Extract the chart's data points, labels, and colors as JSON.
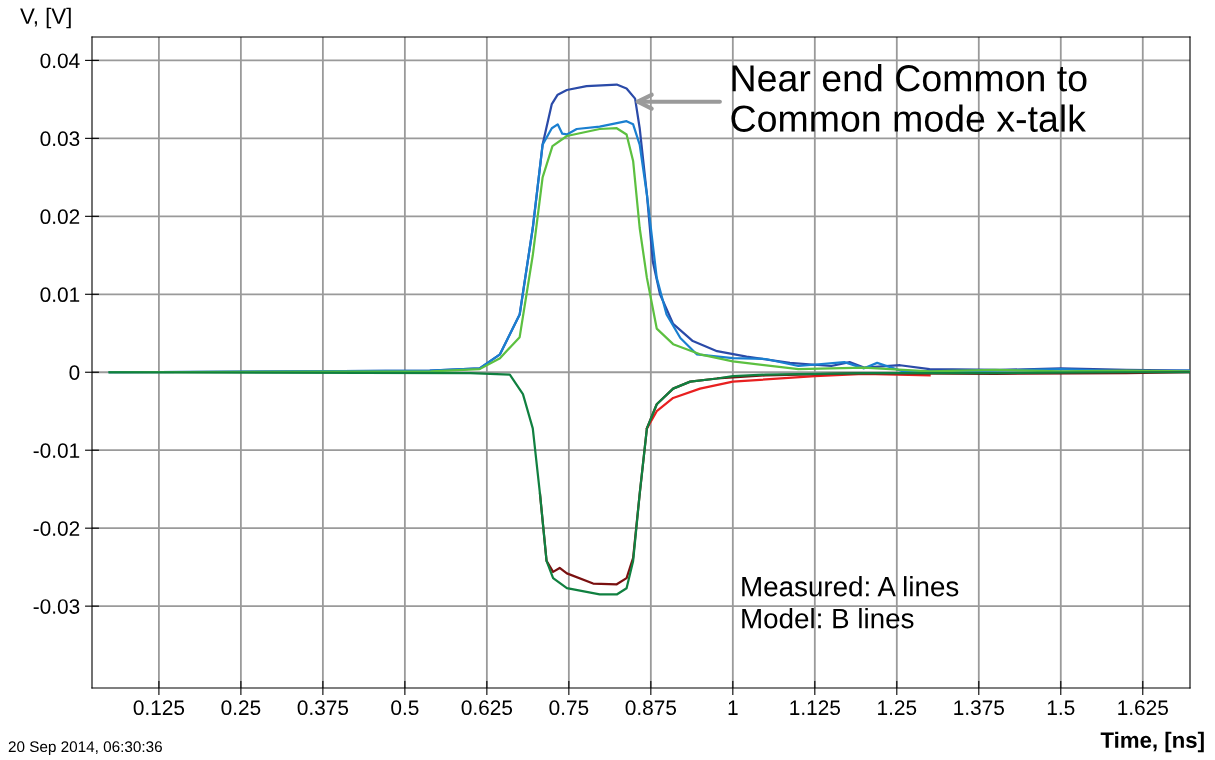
{
  "chart_data": {
    "type": "line",
    "xlabel": "Time, [ns]",
    "ylabel": "V, [V]",
    "xlim": [
      0.023,
      1.697
    ],
    "ylim": [
      -0.0405,
      0.043
    ],
    "xticks": [
      0.125,
      0.25,
      0.375,
      0.5,
      {
        "value": 0.625,
        "label": "0.625"
      },
      0.75,
      0.875,
      1,
      1.125,
      1.25,
      1.375,
      1.5,
      1.625
    ],
    "yticks": [
      -0.03,
      -0.02,
      -0.01,
      0,
      0.01,
      0.02,
      0.03,
      0.04
    ],
    "grid": true,
    "line_style": "solid",
    "marker": "none",
    "annotations": [
      {
        "text": "Near end Common to\nCommon mode x-talk",
        "x": 0.848,
        "y": 0.0347
      },
      "Measured: A lines\nModel: B lines",
      "20 Sep 2014, 06:30:36"
    ],
    "series": [
      {
        "color": "#2a4aa8",
        "x": [
          0.05,
          0.538,
          0.614,
          0.645,
          0.675,
          0.695,
          0.71,
          0.724,
          0.733,
          0.747,
          0.777,
          0.823,
          0.838,
          0.851,
          0.858,
          0.869,
          0.878,
          0.889,
          0.909,
          0.939,
          0.976,
          1.021,
          1.087,
          1.15,
          1.178,
          1.2,
          1.255,
          1.3,
          1.407,
          1.5,
          1.6,
          1.697
        ],
        "values": [
          0,
          0.0002,
          0.0005,
          0.0023,
          0.0074,
          0.0185,
          0.0292,
          0.0344,
          0.0356,
          0.0362,
          0.0367,
          0.0369,
          0.0364,
          0.0351,
          0.0313,
          0.0228,
          0.0142,
          0.01,
          0.0062,
          0.004,
          0.0027,
          0.002,
          0.0012,
          0.0008,
          0.0013,
          0.0006,
          0.0009,
          0.0004,
          0.0003,
          0.0005,
          0.0003,
          0.0002
        ]
      },
      {
        "color": "#1a7fd0",
        "x": [
          0.05,
          0.538,
          0.614,
          0.645,
          0.675,
          0.695,
          0.71,
          0.724,
          0.733,
          0.74,
          0.747,
          0.762,
          0.797,
          0.838,
          0.848,
          0.858,
          0.869,
          0.884,
          0.899,
          0.92,
          0.945,
          1.0,
          1.05,
          1.1,
          1.17,
          1.2,
          1.22,
          1.26,
          1.4,
          1.5,
          1.6,
          1.697
        ],
        "values": [
          0,
          0.0002,
          0.0005,
          0.0023,
          0.0074,
          0.0185,
          0.0292,
          0.0313,
          0.0318,
          0.0306,
          0.0305,
          0.0312,
          0.0315,
          0.0322,
          0.0318,
          0.0292,
          0.0228,
          0.0121,
          0.0074,
          0.0044,
          0.0023,
          0.0018,
          0.0017,
          0.0008,
          0.0013,
          0.0005,
          0.0012,
          0.0001,
          0.0002,
          0.0004,
          0.0001,
          0.0002
        ]
      },
      {
        "color": "#5cc040",
        "x": [
          0.05,
          0.54,
          0.614,
          0.645,
          0.675,
          0.695,
          0.71,
          0.725,
          0.747,
          0.797,
          0.823,
          0.838,
          0.848,
          0.858,
          0.869,
          0.884,
          0.909,
          0.95,
          1.0,
          1.1,
          1.2,
          1.3,
          1.4,
          1.5,
          1.6,
          1.697
        ],
        "values": [
          0,
          0.0001,
          0.0004,
          0.0018,
          0.0045,
          0.015,
          0.025,
          0.029,
          0.0303,
          0.0312,
          0.0313,
          0.0305,
          0.0271,
          0.0185,
          0.0121,
          0.0056,
          0.0036,
          0.0023,
          0.0014,
          0.0004,
          0.0006,
          0.0001,
          0.0003,
          0.0001,
          0.0002,
          0.0001
        ]
      },
      {
        "color": "#e82020",
        "x": [
          0.869,
          0.884,
          0.909,
          0.95,
          1.0,
          1.125,
          1.2,
          1.3
        ],
        "values": [
          -0.0072,
          -0.005,
          -0.0033,
          -0.0021,
          -0.0012,
          -0.0005,
          -0.0002,
          -0.0004
        ]
      },
      {
        "color": "#7a1010",
        "x": [
          0.706,
          0.716,
          0.726,
          0.736,
          0.747,
          0.787,
          0.823,
          0.838,
          0.848,
          0.858,
          0.869,
          0.884,
          0.909,
          0.935,
          0.976,
          1.05,
          1.2,
          1.4,
          1.6,
          1.697
        ],
        "values": [
          -0.0156,
          -0.0242,
          -0.0256,
          -0.0251,
          -0.0258,
          -0.0271,
          -0.0272,
          -0.0264,
          -0.0238,
          -0.0156,
          -0.0072,
          -0.0041,
          -0.0021,
          -0.0012,
          -0.0008,
          -0.0004,
          -0.0001,
          -0.0002,
          -0.0001,
          0
        ]
      },
      {
        "color": "#108040",
        "x": [
          0.05,
          0.6,
          0.66,
          0.68,
          0.695,
          0.706,
          0.716,
          0.726,
          0.747,
          0.797,
          0.823,
          0.838,
          0.848,
          0.858,
          0.869,
          0.884,
          0.909,
          0.935,
          0.976,
          1.0,
          1.05,
          1.2,
          1.4,
          1.6,
          1.697
        ],
        "values": [
          0,
          -0.0001,
          -0.0003,
          -0.0028,
          -0.0072,
          -0.0156,
          -0.0242,
          -0.0264,
          -0.0277,
          -0.0285,
          -0.0285,
          -0.0277,
          -0.0242,
          -0.0156,
          -0.0072,
          -0.0041,
          -0.0021,
          -0.0012,
          -0.0008,
          -0.0005,
          -0.0003,
          -0.0001,
          -0.0001,
          0,
          0
        ]
      }
    ]
  }
}
